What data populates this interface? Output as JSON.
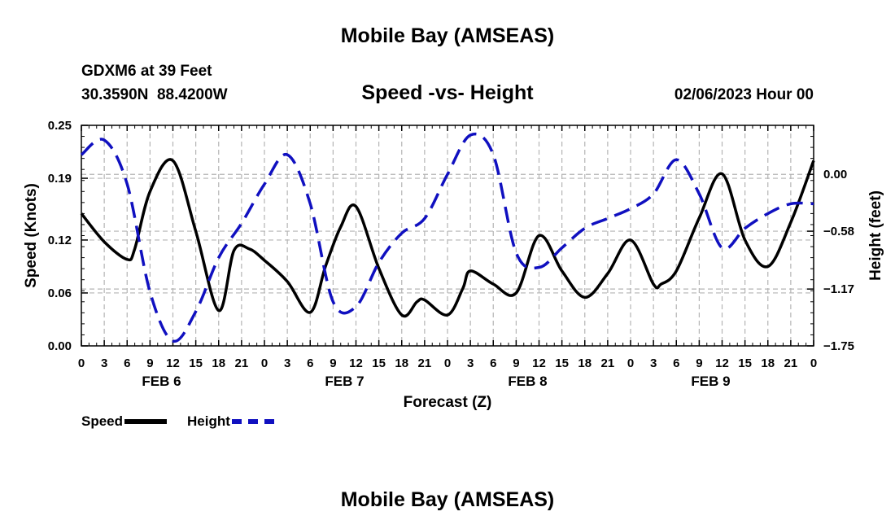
{
  "page": {
    "title": "Mobile Bay (AMSEAS)",
    "station": "GDXM6 at 39 Feet",
    "coords": "30.3590N  88.4200W",
    "chart_title": "Speed -vs- Height",
    "forecast_time": "02/06/2023 Hour 00",
    "footer_title": "Mobile Bay (AMSEAS)"
  },
  "colors": {
    "speed": "#000000",
    "height": "#1010c0",
    "grid": "#b4b4b4"
  },
  "chart_data": {
    "type": "line",
    "title": "Speed -vs- Height",
    "xlabel": "Forecast (Z)",
    "ylabel": "Speed (Knots)",
    "y2label": "Height (feet)",
    "xlim": [
      0,
      96
    ],
    "ylim": [
      0,
      0.25
    ],
    "y2lim": [
      -1.75,
      0.5
    ],
    "x_ticks": [
      0,
      3,
      6,
      9,
      12,
      15,
      18,
      21,
      24,
      27,
      30,
      33,
      36,
      39,
      42,
      45,
      48,
      51,
      54,
      57,
      60,
      63,
      66,
      69,
      72,
      75,
      78,
      81,
      84,
      87,
      90,
      93,
      96
    ],
    "x_tick_labels": [
      "0",
      "3",
      "6",
      "9",
      "12",
      "15",
      "18",
      "21",
      "0",
      "3",
      "6",
      "9",
      "12",
      "15",
      "18",
      "21",
      "0",
      "3",
      "6",
      "9",
      "12",
      "15",
      "18",
      "21",
      "0",
      "3",
      "6",
      "9",
      "12",
      "15",
      "18",
      "21",
      "0"
    ],
    "y_ticks": [
      0.0,
      0.06,
      0.12,
      0.19,
      0.25
    ],
    "y_tick_labels": [
      "0.00",
      "0.06",
      "0.12",
      "0.19",
      "0.25"
    ],
    "y2_ticks": [
      0.0,
      -0.58,
      -1.17,
      -1.75
    ],
    "y2_tick_labels": [
      "0.00",
      "−0.58",
      "−1.17",
      "−1.75"
    ],
    "day_labels": [
      {
        "x": 10.5,
        "label": "FEB 6"
      },
      {
        "x": 34.5,
        "label": "FEB 7"
      },
      {
        "x": 58.5,
        "label": "FEB 8"
      },
      {
        "x": 82.5,
        "label": "FEB 9"
      }
    ],
    "series": [
      {
        "name": "Speed",
        "axis": "left",
        "style": "solid",
        "x": [
          0,
          3,
          6,
          7,
          9,
          12,
          15,
          18,
          20,
          22,
          24,
          27,
          30,
          32,
          34,
          36,
          39,
          42,
          44,
          45,
          48,
          50,
          51,
          54,
          57,
          60,
          63,
          66,
          69,
          72,
          75,
          76,
          78,
          81,
          84,
          87,
          90,
          93,
          96
        ],
        "y": [
          0.15,
          0.118,
          0.098,
          0.11,
          0.175,
          0.21,
          0.13,
          0.04,
          0.108,
          0.11,
          0.097,
          0.073,
          0.038,
          0.09,
          0.135,
          0.158,
          0.088,
          0.035,
          0.05,
          0.052,
          0.035,
          0.065,
          0.085,
          0.07,
          0.06,
          0.125,
          0.085,
          0.055,
          0.082,
          0.12,
          0.07,
          0.07,
          0.085,
          0.145,
          0.195,
          0.12,
          0.09,
          0.14,
          0.21
        ]
      },
      {
        "name": "Height",
        "axis": "right",
        "style": "dashed",
        "x": [
          0,
          3,
          6,
          9,
          12,
          15,
          18,
          21,
          24,
          27,
          30,
          33,
          36,
          39,
          42,
          45,
          48,
          51,
          54,
          57,
          60,
          63,
          66,
          69,
          72,
          75,
          78,
          81,
          84,
          87,
          90,
          93,
          96
        ],
        "y": [
          0.2,
          0.35,
          -0.1,
          -1.2,
          -1.7,
          -1.4,
          -0.85,
          -0.5,
          -0.1,
          0.2,
          -0.3,
          -1.3,
          -1.35,
          -0.9,
          -0.6,
          -0.45,
          0.0,
          0.4,
          0.2,
          -0.8,
          -0.95,
          -0.75,
          -0.55,
          -0.45,
          -0.35,
          -0.2,
          0.15,
          -0.2,
          -0.75,
          -0.55,
          -0.4,
          -0.3,
          -0.3
        ]
      }
    ],
    "legend": [
      {
        "label": "Speed",
        "color": "#000000",
        "style": "solid"
      },
      {
        "label": "Height",
        "color": "#1010c0",
        "style": "dashed"
      }
    ]
  }
}
